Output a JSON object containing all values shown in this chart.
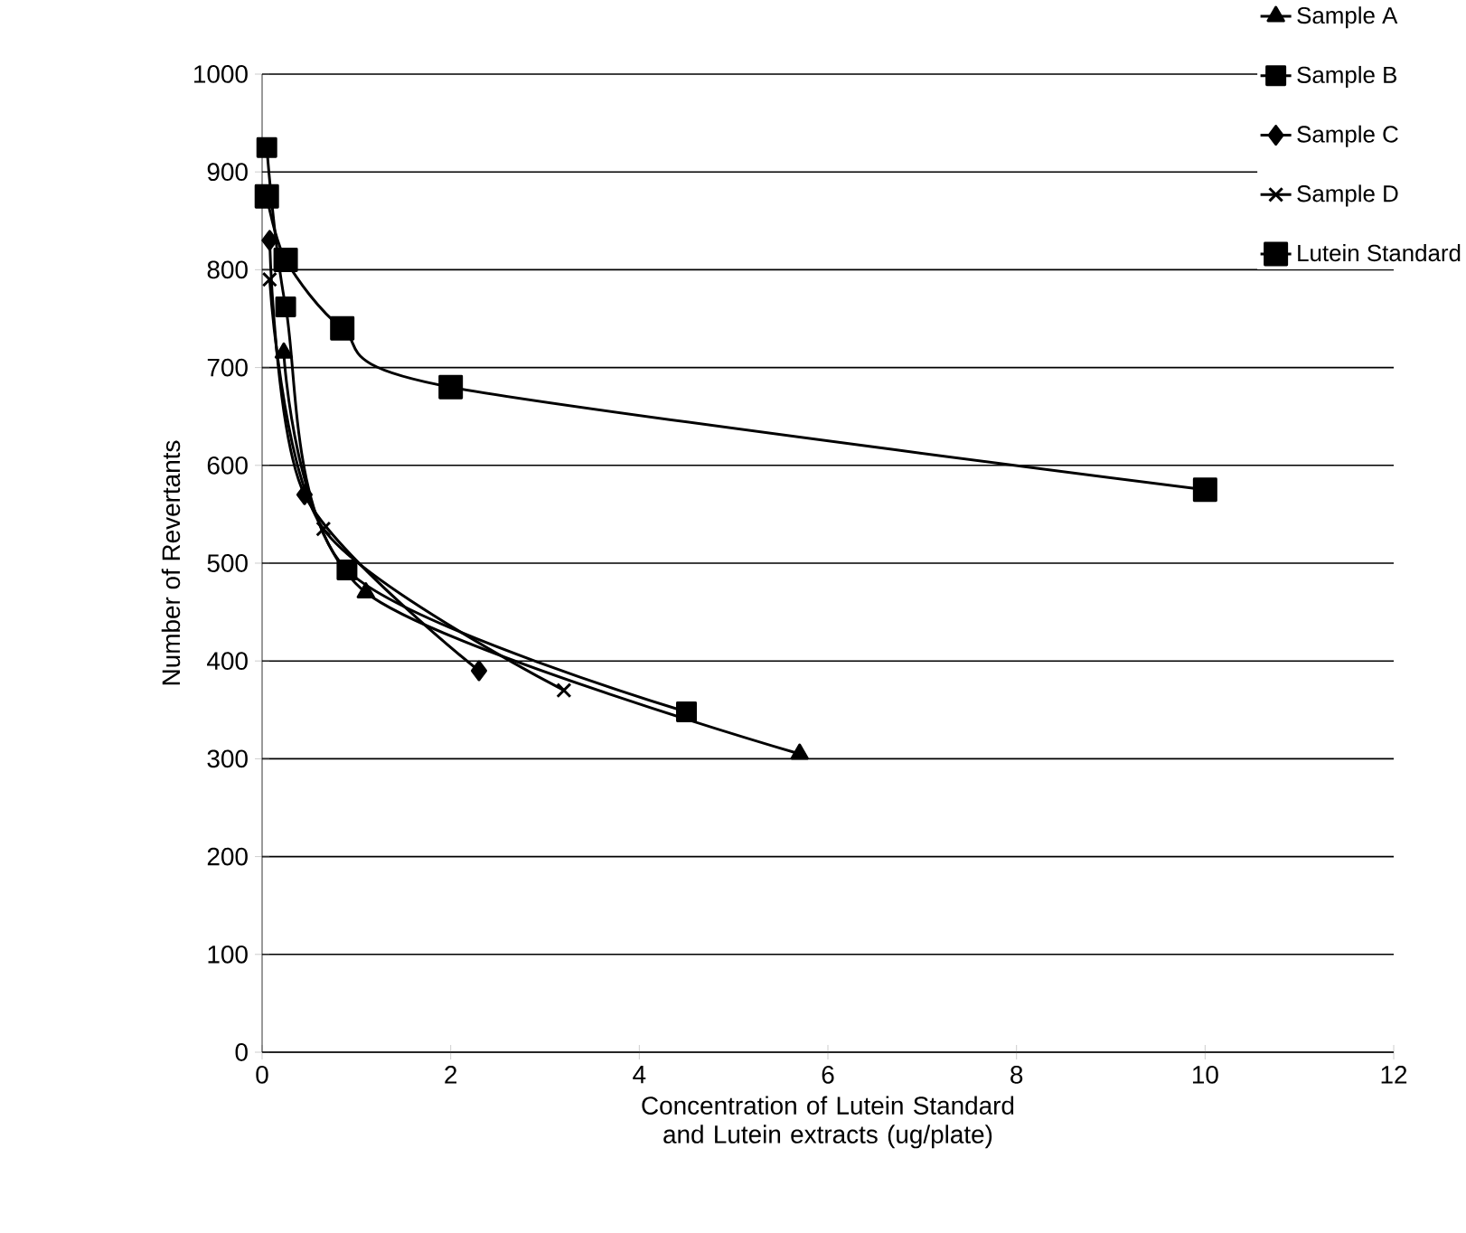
{
  "chart_data": {
    "type": "line",
    "xlabel": "Concentration of Lutein Standard\nand Lutein extracts (ug/plate)",
    "ylabel": "Number of Revertants",
    "xlim": [
      0,
      12
    ],
    "xticks": [
      0,
      2,
      4,
      6,
      8,
      10,
      12
    ],
    "ylim": [
      0,
      1000
    ],
    "yticks": [
      0,
      100,
      200,
      300,
      400,
      500,
      600,
      700,
      800,
      900,
      1000
    ],
    "grid": "y",
    "legend": "top right",
    "line_style": "solid",
    "series": [
      {
        "name": "Sample A",
        "color": "#000000",
        "marker": "triangle",
        "x": [
          0.23,
          1.1,
          5.7
        ],
        "values": [
          715,
          470,
          305
        ]
      },
      {
        "name": "Sample B",
        "color": "#000000",
        "marker": "square",
        "x": [
          0.05,
          0.25,
          0.9,
          4.5
        ],
        "values": [
          925,
          762,
          493,
          348
        ]
      },
      {
        "name": "Sample C",
        "color": "#000000",
        "marker": "diamond",
        "x": [
          0.08,
          0.45,
          2.3
        ],
        "values": [
          830,
          570,
          390
        ]
      },
      {
        "name": "Sample D",
        "color": "#000000",
        "marker": "cross",
        "x": [
          0.08,
          0.65,
          3.2
        ],
        "values": [
          790,
          535,
          370
        ]
      },
      {
        "name": "Lutein Standard",
        "color": "#000000",
        "marker": "square",
        "x": [
          0.05,
          0.25,
          0.85,
          2.0,
          10.0
        ],
        "values": [
          875,
          810,
          740,
          680,
          575
        ]
      }
    ]
  }
}
